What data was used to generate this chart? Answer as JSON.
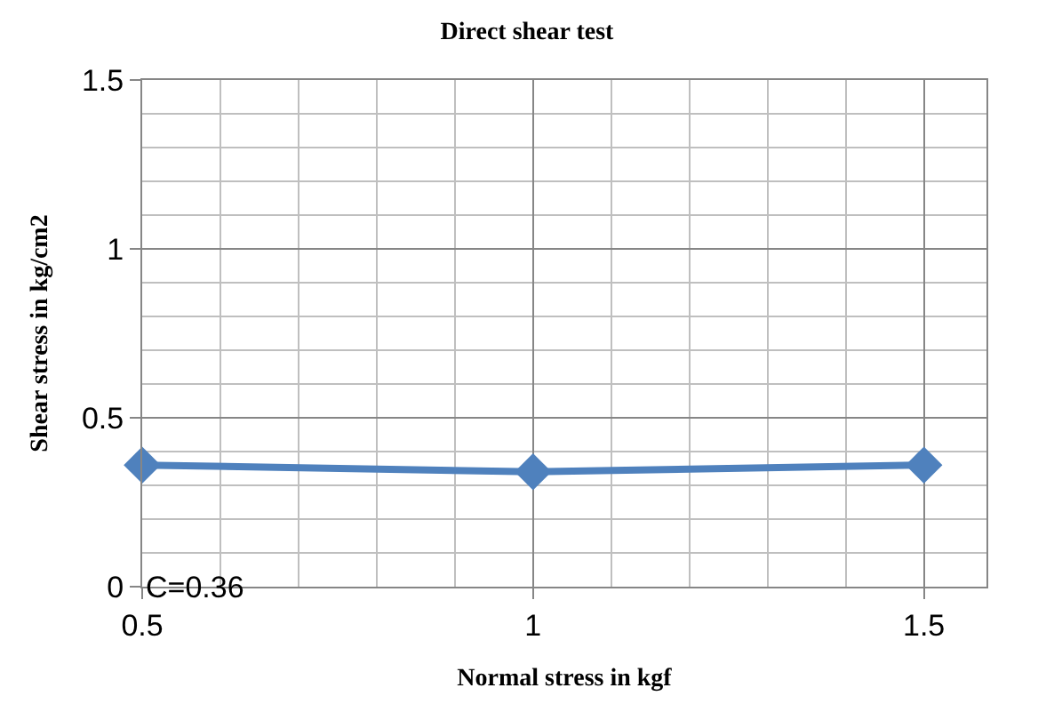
{
  "chart_data": {
    "type": "line",
    "title": "Direct shear test",
    "xlabel": "Normal stress in kgf",
    "ylabel": "Shear stress in kg/cm2",
    "x": [
      0.5,
      1,
      1.5
    ],
    "series": [
      {
        "color": "#4f81bd",
        "values": [
          0.36,
          0.34,
          0.36
        ]
      }
    ],
    "xlim": [
      0.5,
      1.58
    ],
    "xticks": [
      0.5,
      1,
      1.5
    ],
    "ylim": [
      0,
      1.5
    ],
    "yticks": [
      0,
      0.5,
      1,
      1.5
    ],
    "grid": true,
    "legend": false,
    "marker": "diamond",
    "line_style": "solid",
    "annotations": [
      "C=0.36"
    ]
  }
}
